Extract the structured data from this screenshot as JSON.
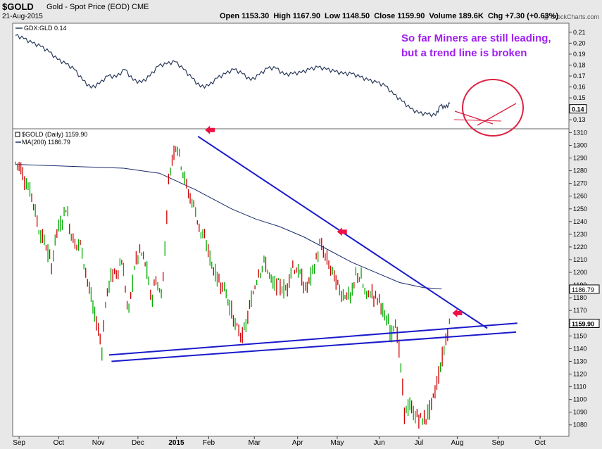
{
  "header": {
    "symbol": "$GOLD",
    "description": "Gold - Spot Price (EOD)",
    "exchange": "CME",
    "date": "21-Aug-2015",
    "watermark": "@ StockCharts.com",
    "open_label": "Open",
    "open": "1153.30",
    "high_label": "High",
    "high": "1167.90",
    "low_label": "Low",
    "low": "1148.50",
    "close_label": "Close",
    "close": "1159.90",
    "volume_label": "Volume",
    "volume": "189.6K",
    "chg_label": "Chg",
    "chg": "+7.30 (+0.63%)"
  },
  "annotation": {
    "line1": "So far Miners are still leading,",
    "line2": "but a trend line is broken"
  },
  "colors": {
    "ratio_line": "#2a3a5a",
    "up_bar": "#00aa00",
    "down_bar": "#cc0000",
    "ma_line": "#1a2a6a",
    "trend_line": "#1a1acc",
    "arrow": "#ee1144",
    "circle": "#dd2244",
    "annotation": "#a020f0"
  },
  "chart_data": [
    {
      "type": "line",
      "panel": "top",
      "legend": "GDX:GLD 0.14",
      "last_value_label": "0.14",
      "y_ticks": [
        "0.13",
        "0.14",
        "0.15",
        "0.16",
        "0.17",
        "0.18",
        "0.19",
        "0.20",
        "0.21"
      ],
      "ylim": [
        0.125,
        0.215
      ],
      "x_days": [
        0,
        7,
        14,
        21,
        28,
        35,
        42,
        49,
        56,
        63,
        70,
        77,
        84,
        91,
        98,
        105,
        112,
        119,
        126,
        133,
        140,
        147,
        154,
        161,
        168,
        175,
        182,
        189,
        196,
        203,
        210,
        217,
        224,
        231,
        238,
        245,
        252,
        259,
        266,
        273,
        280,
        287,
        294,
        301,
        308,
        315,
        322,
        329,
        336,
        343,
        350,
        354,
        358,
        362
      ],
      "values": [
        0.207,
        0.204,
        0.2,
        0.197,
        0.192,
        0.185,
        0.181,
        0.176,
        0.166,
        0.159,
        0.163,
        0.17,
        0.169,
        0.176,
        0.166,
        0.164,
        0.17,
        0.179,
        0.181,
        0.183,
        0.176,
        0.168,
        0.16,
        0.161,
        0.168,
        0.172,
        0.176,
        0.172,
        0.166,
        0.171,
        0.177,
        0.177,
        0.171,
        0.172,
        0.173,
        0.176,
        0.178,
        0.176,
        0.174,
        0.172,
        0.172,
        0.169,
        0.166,
        0.164,
        0.161,
        0.153,
        0.147,
        0.14,
        0.136,
        0.135,
        0.134,
        0.143,
        0.141,
        0.145
      ],
      "ellipse_label": "circled region"
    },
    {
      "type": "candlestick",
      "panel": "main",
      "legend": "$GOLD (Daily) 1159.90",
      "ma_legend": "MA(200) 1186.79",
      "close_label": "1159.90",
      "ma_label": "1186.79",
      "x_labels": [
        "Sep",
        "Oct",
        "Nov",
        "Dec",
        "2015",
        "Feb",
        "Mar",
        "Apr",
        "May",
        "Jun",
        "Jul",
        "Aug",
        "Sep",
        "Oct"
      ],
      "y_ticks": [
        "1080",
        "1090",
        "1100",
        "1110",
        "1120",
        "1130",
        "1140",
        "1150",
        "1160",
        "1170",
        "1180",
        "1190",
        "1200",
        "1210",
        "1220",
        "1230",
        "1240",
        "1250",
        "1260",
        "1270",
        "1280",
        "1290",
        "1300",
        "1310"
      ],
      "ylim": [
        1071,
        1313
      ],
      "series": [
        {
          "name": "$GOLD (Daily)",
          "close_days": [
            0,
            4,
            9,
            14,
            19,
            25,
            30,
            34,
            38,
            42,
            46,
            50,
            54,
            58,
            62,
            66,
            68,
            70,
            72,
            75,
            79,
            84,
            89,
            94,
            99,
            104,
            109,
            113,
            117,
            121,
            124,
            127,
            130,
            134,
            139,
            144,
            149,
            154,
            159,
            163,
            168,
            173,
            178,
            184,
            190,
            196,
            202,
            208,
            214,
            218,
            222,
            226,
            230,
            236,
            242,
            248,
            254,
            260,
            264,
            268,
            272,
            276,
            280,
            284,
            288,
            292,
            296,
            300,
            304,
            306,
            308,
            310,
            313,
            316,
            320,
            324,
            328,
            332,
            336,
            340,
            344,
            348,
            352,
            356,
            360,
            362
          ],
          "closes": [
            1286,
            1284,
            1270,
            1260,
            1235,
            1222,
            1205,
            1232,
            1238,
            1252,
            1232,
            1222,
            1222,
            1204,
            1184,
            1165,
            1160,
            1150,
            1140,
            1175,
            1196,
            1200,
            1210,
            1165,
            1205,
            1217,
            1204,
            1178,
            1195,
            1180,
            1208,
            1268,
            1288,
            1303,
            1282,
            1262,
            1252,
            1232,
            1222,
            1208,
            1195,
            1190,
            1176,
            1155,
            1150,
            1176,
            1200,
            1208,
            1190,
            1190,
            1188,
            1186,
            1206,
            1200,
            1186,
            1202,
            1222,
            1208,
            1200,
            1190,
            1183,
            1183,
            1180,
            1200,
            1195,
            1180,
            1185,
            1180,
            1178,
            1170,
            1160,
            1162,
            1150,
            1165,
            1135,
            1090,
            1095,
            1088,
            1086,
            1083,
            1090,
            1100,
            1118,
            1135,
            1155,
            1160
          ]
        }
      ],
      "ma200": {
        "x_days": [
          0,
          30,
          60,
          90,
          120,
          150,
          180,
          200,
          220,
          240,
          260,
          280,
          300,
          320,
          340,
          355
        ],
        "values": [
          1285,
          1284,
          1283,
          1282,
          1278,
          1265,
          1250,
          1242,
          1236,
          1228,
          1218,
          1208,
          1200,
          1192,
          1188,
          1187
        ]
      },
      "trend_lines": [
        {
          "name": "resistance",
          "from": {
            "day": 152,
            "value": 1307
          },
          "to": {
            "day": 393,
            "value": 1156
          }
        },
        {
          "name": "support-upper",
          "from": {
            "day": 78,
            "value": 1135
          },
          "to": {
            "day": 418,
            "value": 1160
          }
        },
        {
          "name": "support-lower",
          "from": {
            "day": 80,
            "value": 1130
          },
          "to": {
            "day": 417,
            "value": 1153
          }
        }
      ],
      "arrows": [
        {
          "day": 152,
          "value": 1312
        },
        {
          "day": 262,
          "value": 1232
        },
        {
          "day": 358,
          "value": 1168
        }
      ]
    }
  ]
}
